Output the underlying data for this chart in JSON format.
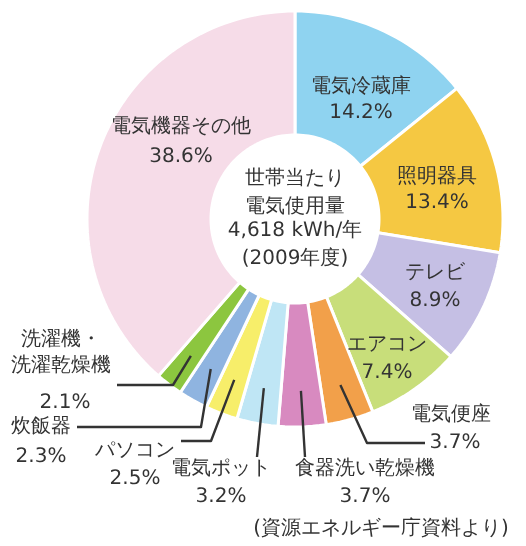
{
  "chart_data": {
    "type": "donut",
    "title": "世帯当たり電気使用量",
    "subtitle": "4,618 kWh/年\n(2009年度)",
    "categories": [
      "電気冷蔵庫",
      "照明器具",
      "テレビ",
      "エアコン",
      "電気便座",
      "食器洗い乾燥機",
      "電気ポット",
      "パソコン",
      "炊飯器",
      "洗濯機・洗濯乾燥機",
      "電気機器その他"
    ],
    "values": [
      14.2,
      13.4,
      8.9,
      7.4,
      3.7,
      3.7,
      3.2,
      2.5,
      2.3,
      2.1,
      38.6
    ],
    "value_labels": [
      "14.2%",
      "13.4%",
      "8.9%",
      "7.4%",
      "3.7%",
      "3.7%",
      "3.2%",
      "2.5%",
      "2.3%",
      "2.1%",
      "38.6%"
    ],
    "colors": [
      "#8fd3f0",
      "#f5c842",
      "#c5bfe4",
      "#c8de7a",
      "#f2a04a",
      "#d88ac0",
      "#bfe6f5",
      "#f7ee6a",
      "#8fb4e0",
      "#8cc63f",
      "#f6dce8"
    ],
    "annotations": [
      "(資源エネルギー庁資料より)"
    ]
  }
}
